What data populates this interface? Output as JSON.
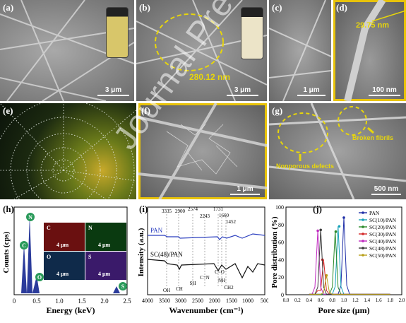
{
  "figure": {
    "watermark": "Journal Pre-proof",
    "panels": {
      "a": {
        "label": "(a)",
        "scale": "3 μm"
      },
      "b": {
        "label": "(b)",
        "scale": "3 μm",
        "measure": "280.12 nm"
      },
      "c": {
        "label": "(c)",
        "scale": "1 μm"
      },
      "d": {
        "label": "(d)",
        "scale": "100 nm",
        "measure": "29.75 nm"
      },
      "e": {
        "label": "(e)"
      },
      "f": {
        "label": "(f)",
        "scale": "1 μm"
      },
      "g": {
        "label": "(g)",
        "scale": "500 nm",
        "ann1": "Broken fibrils",
        "ann2": "Nonporous defects"
      },
      "h": {
        "label": "(h)",
        "ylabel": "Counts (cps)",
        "xlabel": "Energy (keV)",
        "peaks": [
          "C",
          "N",
          "O",
          "S"
        ],
        "maps": [
          {
            "el": "C",
            "scale": "4 μm"
          },
          {
            "el": "N",
            "scale": "4 μm"
          },
          {
            "el": "O",
            "scale": "4 μm"
          },
          {
            "el": "S",
            "scale": "4 μm"
          }
        ]
      },
      "i": {
        "label": "(i)",
        "ylabel": "Intensity (a.u.)",
        "xlabel": "Wavenumber (cm⁻¹)",
        "series1": "PAN",
        "series2": "SC(48)/PAN",
        "top_labels": [
          "3335",
          "2900",
          "2574",
          "2243",
          "1731",
          "1660",
          "1452"
        ],
        "bottom_labels": [
          "OH",
          "CH",
          "SH",
          "C=N",
          "C=O",
          "NH",
          "CH2"
        ]
      },
      "j": {
        "label": "(j)",
        "ylabel": "Pore distribution (%)",
        "xlabel": "Pore size (μm)"
      }
    }
  },
  "chart_data": [
    {
      "type": "line",
      "panel": "h",
      "xlabel": "Energy (keV)",
      "ylabel": "Counts (cps)",
      "xlim": [
        0,
        2.5
      ],
      "x_ticks": [
        "0",
        "0.5",
        "1.0",
        "1.5",
        "2.0",
        "2.5"
      ],
      "peaks": [
        {
          "label": "C",
          "x": 0.28
        },
        {
          "label": "N",
          "x": 0.39
        },
        {
          "label": "O",
          "x": 0.52
        },
        {
          "label": "S",
          "x": 2.31
        }
      ]
    },
    {
      "type": "line",
      "panel": "i",
      "xlabel": "Wavenumber (cm⁻¹)",
      "ylabel": "Intensity (a.u.)",
      "xlim": [
        4000,
        500
      ],
      "x_ticks": [
        "4000",
        "3500",
        "3000",
        "2500",
        "2000",
        "1500",
        "1000",
        "500"
      ],
      "series": [
        {
          "name": "PAN",
          "color": "#2b3fbf"
        },
        {
          "name": "SC(48)/PAN",
          "color": "#111111"
        }
      ],
      "bands": [
        3335,
        2900,
        2574,
        2243,
        1731,
        1660,
        1452
      ]
    },
    {
      "type": "line",
      "panel": "j",
      "xlabel": "Pore size (μm)",
      "ylabel": "Pore distribution (%)",
      "xlim": [
        0.0,
        2.0
      ],
      "ylim": [
        0,
        100
      ],
      "x_ticks": [
        "0.0",
        "0.2",
        "0.4",
        "0.6",
        "0.8",
        "1.0",
        "1.2",
        "1.4",
        "1.6",
        "1.8",
        "2.0"
      ],
      "y_ticks": [
        "0",
        "20",
        "40",
        "60",
        "80",
        "100"
      ],
      "series": [
        {
          "name": "PAN",
          "color": "#1f2fa8",
          "peak_x": 1.0,
          "peak_y": 88
        },
        {
          "name": "SC(10)/PAN",
          "color": "#17a2b8",
          "peak_x": 0.92,
          "peak_y": 78
        },
        {
          "name": "SC(20)/PAN",
          "color": "#2a8a2a",
          "peak_x": 0.86,
          "peak_y": 72
        },
        {
          "name": "SC(30)/PAN",
          "color": "#d42a2a",
          "peak_x": 0.63,
          "peak_y": 40
        },
        {
          "name": "SC(40)/PAN",
          "color": "#c02ac0",
          "peak_x": 0.55,
          "peak_y": 73
        },
        {
          "name": "SC(48)/PAN",
          "color": "#3a3a3a",
          "peak_x": 0.6,
          "peak_y": 74
        },
        {
          "name": "SC(50)/PAN",
          "color": "#b8a01a",
          "peak_x": 0.7,
          "peak_y": 22
        }
      ]
    }
  ]
}
